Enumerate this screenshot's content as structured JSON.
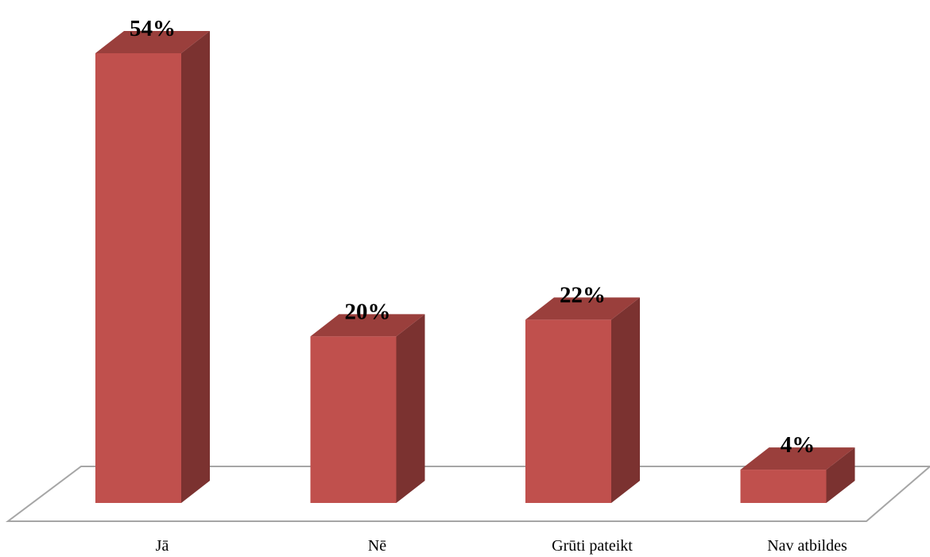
{
  "chart_data": {
    "type": "bar",
    "categories": [
      "Jā",
      "Nē",
      "Grūti pateikt",
      "Nav atbildes"
    ],
    "values": [
      54,
      20,
      22,
      4
    ],
    "value_labels": [
      "54%",
      "20%",
      "22%",
      "4%"
    ],
    "unit": "%",
    "title": "",
    "xlabel": "",
    "ylabel": "",
    "ylim": [
      0,
      54
    ],
    "grid": false,
    "legend": "none",
    "three_d": true,
    "colors": {
      "bar_front": "#c0504d",
      "bar_side": "#7b3230",
      "bar_top": "#9a3f3c",
      "floor_line": "#a6a6a6"
    }
  }
}
